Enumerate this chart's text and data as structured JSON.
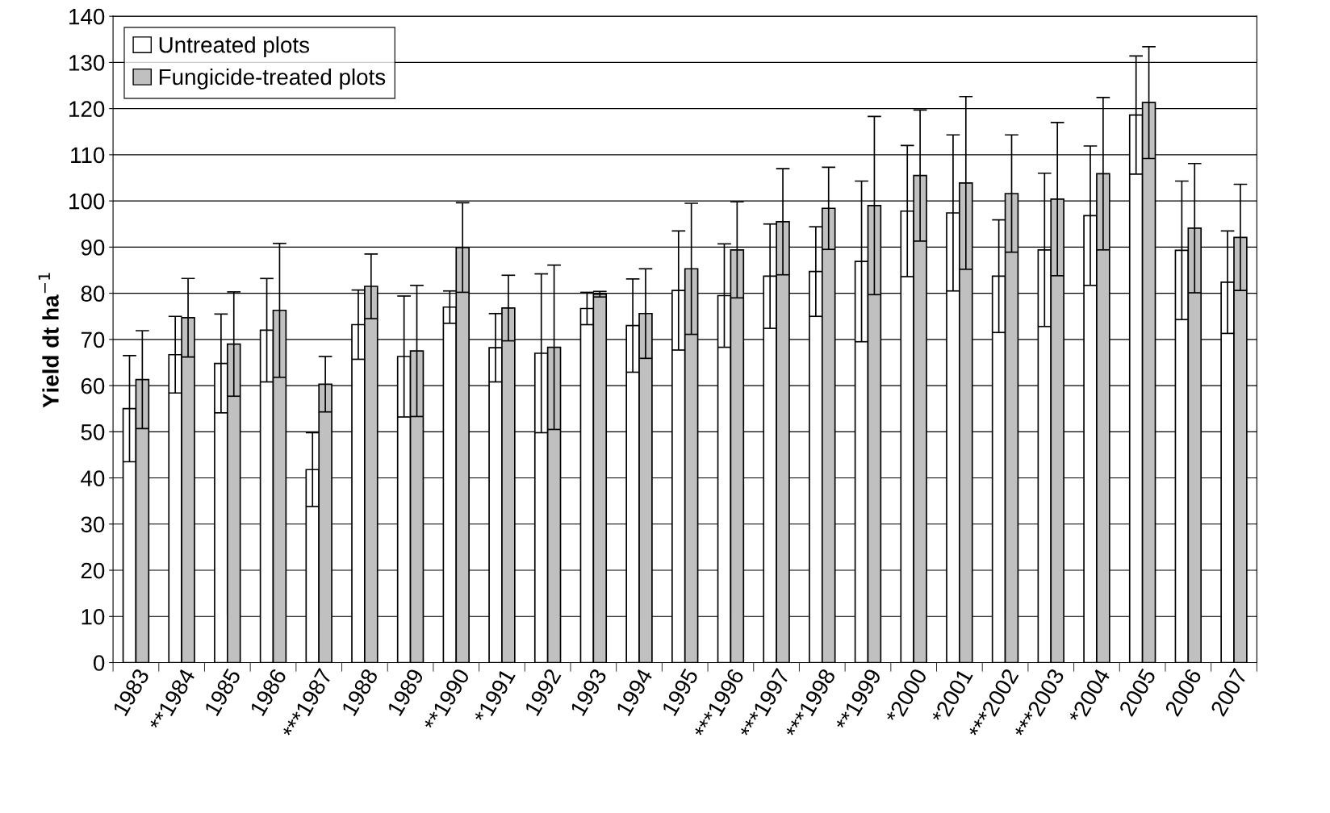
{
  "chart_data": {
    "type": "bar",
    "ylabel": "Yield dt ha$^{−1}$",
    "categories": [
      "1983",
      "**1984",
      "1985",
      "1986",
      "***1987",
      "1988",
      "1989",
      "**1990",
      "*1991",
      "1992",
      "1993",
      "1994",
      "1995",
      "***1996",
      "***1997",
      "***1998",
      "**1999",
      "*2000",
      "*2001",
      "***2002",
      "***2003",
      "*2004",
      "2005",
      "2006",
      "2007"
    ],
    "series": [
      {
        "name": "Untreated plots",
        "color": "#ffffff",
        "values": [
          55,
          66.7,
          64.8,
          72,
          41.8,
          73.2,
          66.3,
          77,
          68.2,
          67,
          76.7,
          73,
          80.6,
          79.5,
          83.7,
          84.7,
          86.9,
          97.8,
          97.4,
          83.7,
          89.4,
          96.8,
          118.6,
          89.3,
          82.4
        ],
        "errors": [
          11.5,
          8.3,
          10.7,
          11.2,
          8,
          7.5,
          13.1,
          3.5,
          7.4,
          17.2,
          3.5,
          10.1,
          12.9,
          11.2,
          11.3,
          9.7,
          17.4,
          14.2,
          16.9,
          12.2,
          16.6,
          15.1,
          12.8,
          15,
          11.1
        ]
      },
      {
        "name": "Fungicide-treated plots",
        "color": "#c0c0c0",
        "values": [
          61.3,
          74.7,
          69,
          76.3,
          60.3,
          81.5,
          67.5,
          89.9,
          76.8,
          68.3,
          79.8,
          75.6,
          85.3,
          89.4,
          95.5,
          98.4,
          99,
          105.5,
          103.9,
          101.6,
          100.4,
          105.9,
          121.3,
          94.1,
          92.1
        ],
        "errors": [
          10.6,
          8.5,
          11.3,
          14.5,
          6,
          7,
          14.2,
          9.7,
          7.1,
          17.8,
          0.6,
          9.7,
          14.2,
          10.4,
          11.5,
          8.9,
          19.3,
          14.2,
          18.7,
          12.7,
          16.6,
          16.5,
          12.1,
          14,
          11.5
        ]
      }
    ],
    "ylim": [
      0,
      140
    ],
    "yticks": [
      0,
      10,
      20,
      30,
      40,
      50,
      60,
      70,
      80,
      90,
      100,
      110,
      120,
      130,
      140
    ],
    "grid": "y",
    "legend": "top left"
  }
}
